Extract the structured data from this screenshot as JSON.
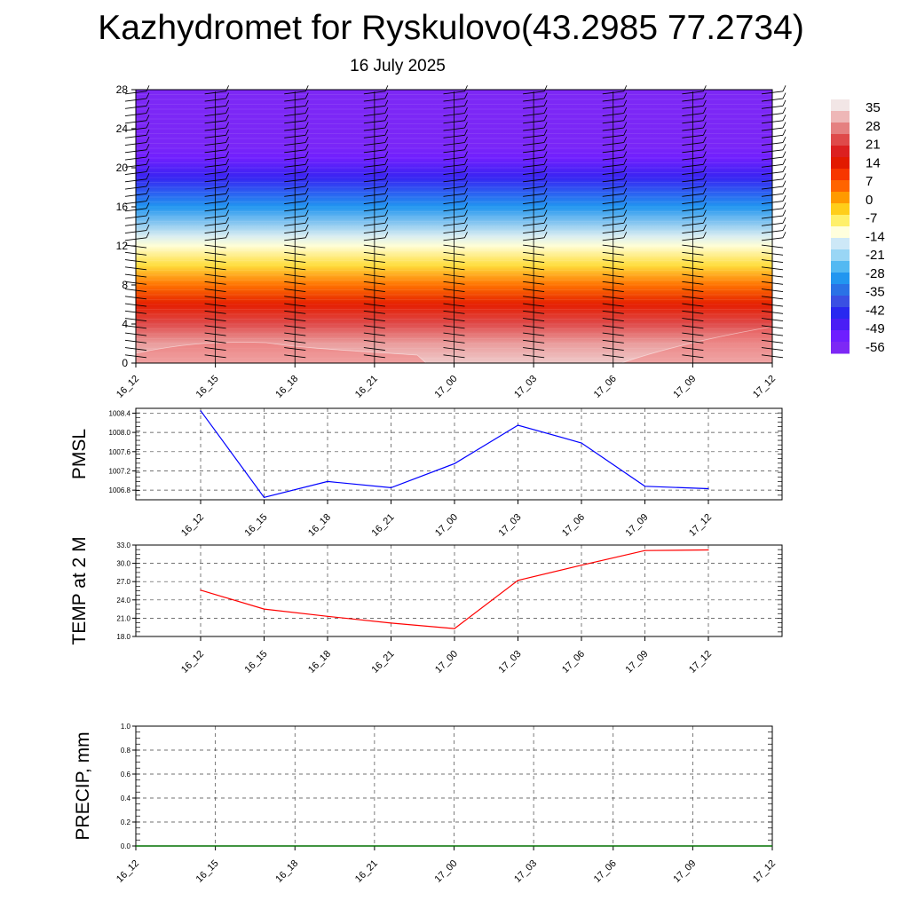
{
  "title": "Kazhydromet for Ryskulovo(43.2985 77.2734)",
  "subtitle": "16 July 2025",
  "chart_data": [
    {
      "type": "heatmap",
      "name": "cross-section",
      "xlabel": "",
      "ylabel": "",
      "x_ticks": [
        "16_12",
        "16_15",
        "16_18",
        "16_21",
        "17_00",
        "17_03",
        "17_06",
        "17_09",
        "17_12"
      ],
      "y_ticks": [
        0,
        4,
        8,
        12,
        16,
        20,
        24,
        28
      ],
      "ylim": [
        0,
        28
      ],
      "colorbar_labels": [
        "35",
        "28",
        "21",
        "14",
        "7",
        "0",
        "-7",
        "-14",
        "-21",
        "-28",
        "-35",
        "-42",
        "-49",
        "-56"
      ],
      "colorbar_colors": [
        "#f2e6e6",
        "#eeb7b7",
        "#e58080",
        "#df4a4a",
        "#dc2020",
        "#e21a00",
        "#f73600",
        "#ff6400",
        "#ff9a00",
        "#ffce1a",
        "#fff06a",
        "#ffffdd",
        "#cde8f7",
        "#99d6f5",
        "#53b9f2",
        "#2196f0",
        "#2a72e6",
        "#3a50e3",
        "#2828f0",
        "#4a1ef5",
        "#6e1eff",
        "#7d28f5"
      ],
      "profile": [
        {
          "height": 0,
          "value": 33
        },
        {
          "height": 2,
          "value": 29
        },
        {
          "height": 4,
          "value": 22
        },
        {
          "height": 6,
          "value": 12
        },
        {
          "height": 8,
          "value": 2
        },
        {
          "height": 10,
          "value": -8
        },
        {
          "height": 12,
          "value": -15
        },
        {
          "height": 13,
          "value": -19
        },
        {
          "height": 16,
          "value": -34
        },
        {
          "height": 19,
          "value": -50
        },
        {
          "height": 21,
          "value": -58
        },
        {
          "height": 22.3,
          "value": -61
        },
        {
          "height": 28,
          "value": -62
        }
      ],
      "wind_barbs": "shown at each 3-hour time step"
    },
    {
      "type": "line",
      "name": "PMSL",
      "ylabel": "PMSL",
      "x": [
        "16_12",
        "16_15",
        "16_18",
        "16_21",
        "17_00",
        "17_03",
        "17_06",
        "17_09",
        "17_12"
      ],
      "values": [
        1008.45,
        1006.65,
        1006.98,
        1006.85,
        1007.35,
        1008.15,
        1007.78,
        1006.88,
        1006.83
      ],
      "y_ticks": [
        "1006.8",
        "1007.2",
        "1007.6",
        "1008.0",
        "1008.4"
      ],
      "ylim": [
        1006.6,
        1008.5
      ],
      "color": "#0000ff",
      "grid": true
    },
    {
      "type": "line",
      "name": "TEMP at 2 M",
      "ylabel": "TEMP at 2 M",
      "x": [
        "16_12",
        "16_15",
        "16_18",
        "16_21",
        "17_00",
        "17_03",
        "17_06",
        "17_09",
        "17_12"
      ],
      "values": [
        25.6,
        22.5,
        21.3,
        20.2,
        19.3,
        27.2,
        29.7,
        32.1,
        32.2
      ],
      "y_ticks": [
        "18.0",
        "21.0",
        "24.0",
        "27.0",
        "30.0",
        "33.0"
      ],
      "ylim": [
        18,
        33
      ],
      "color": "#ff0000",
      "grid": true
    },
    {
      "type": "line",
      "name": "PRECIP, mm",
      "ylabel": "PRECIP, mm",
      "x": [
        "16_12",
        "16_15",
        "16_18",
        "16_21",
        "17_00",
        "17_03",
        "17_06",
        "17_09",
        "17_12"
      ],
      "values": [
        0,
        0,
        0,
        0,
        0,
        0,
        0,
        0,
        0
      ],
      "y_ticks": [
        "0.0",
        "0.2",
        "0.4",
        "0.6",
        "0.8",
        "1.0"
      ],
      "ylim": [
        0,
        1
      ],
      "color": "#007000",
      "grid": true
    }
  ]
}
